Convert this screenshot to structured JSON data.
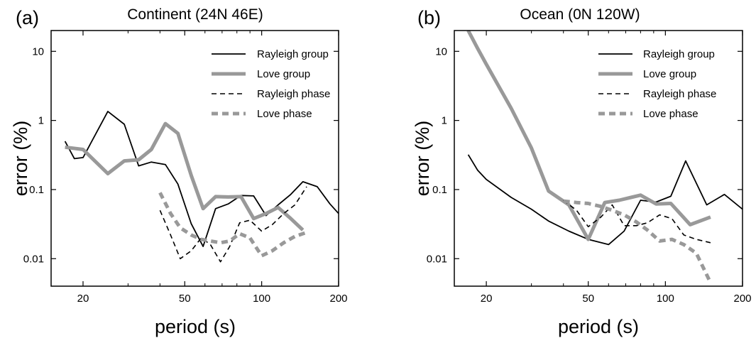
{
  "chart_data": [
    {
      "type": "line",
      "panel_letter": "(a)",
      "title": "Continent (24N 46E)",
      "xlabel": "period (s)",
      "ylabel": "error (%)",
      "xscale": "log",
      "yscale": "log",
      "xlim": [
        15,
        200
      ],
      "ylim": [
        0.004,
        20
      ],
      "x_ticks": [
        20,
        50,
        100,
        200
      ],
      "x_tick_labels": [
        "20",
        "50",
        "100",
        "200"
      ],
      "y_ticks": [
        0.01,
        0.1,
        1,
        10
      ],
      "y_tick_labels": [
        "0.01",
        "0.1",
        "1",
        "10"
      ],
      "grid": false,
      "legend_position": "top-right",
      "series": [
        {
          "name": "Rayleigh group",
          "color": "#000000",
          "style": "solid-thin",
          "x": [
            17,
            18.5,
            20,
            25,
            29,
            33,
            37,
            42,
            47,
            53,
            59,
            66,
            74,
            83,
            93,
            104,
            116,
            130,
            145,
            165,
            185,
            200
          ],
          "y": [
            0.5,
            0.28,
            0.29,
            1.35,
            0.88,
            0.22,
            0.25,
            0.23,
            0.12,
            0.032,
            0.015,
            0.053,
            0.062,
            0.082,
            0.081,
            0.042,
            0.06,
            0.085,
            0.13,
            0.11,
            0.062,
            0.045
          ]
        },
        {
          "name": "Love group",
          "color": "#999999",
          "style": "solid-thick",
          "x": [
            17,
            20,
            25,
            29,
            33,
            37,
            42,
            47,
            53,
            59,
            66,
            74,
            83,
            93,
            104,
            116,
            130,
            145
          ],
          "y": [
            0.41,
            0.38,
            0.17,
            0.26,
            0.27,
            0.38,
            0.9,
            0.65,
            0.16,
            0.053,
            0.079,
            0.078,
            0.079,
            0.038,
            0.045,
            0.055,
            0.038,
            0.026
          ]
        },
        {
          "name": "Rayleigh phase",
          "color": "#000000",
          "style": "dashed-thin",
          "x": [
            40,
            44,
            48,
            53,
            58,
            63,
            69,
            75,
            82,
            90,
            100,
            110,
            122,
            135,
            150
          ],
          "y": [
            0.05,
            0.022,
            0.01,
            0.013,
            0.02,
            0.016,
            0.009,
            0.015,
            0.033,
            0.036,
            0.025,
            0.031,
            0.045,
            0.06,
            0.11
          ]
        },
        {
          "name": "Love phase",
          "color": "#999999",
          "style": "dashed-thick",
          "x": [
            40,
            44,
            48,
            53,
            58,
            63,
            69,
            75,
            82,
            90,
            100,
            110,
            122,
            135,
            150
          ],
          "y": [
            0.09,
            0.045,
            0.028,
            0.022,
            0.019,
            0.018,
            0.017,
            0.018,
            0.023,
            0.02,
            0.011,
            0.013,
            0.017,
            0.021,
            0.024
          ]
        }
      ]
    },
    {
      "type": "line",
      "panel_letter": "(b)",
      "title": "Ocean (0N 120W)",
      "xlabel": "period (s)",
      "ylabel": "error (%)",
      "xscale": "log",
      "yscale": "log",
      "xlim": [
        15,
        200
      ],
      "ylim": [
        0.004,
        20
      ],
      "x_ticks": [
        20,
        50,
        100,
        200
      ],
      "x_tick_labels": [
        "20",
        "50",
        "100",
        "200"
      ],
      "y_ticks": [
        0.01,
        0.1,
        1,
        10
      ],
      "y_tick_labels": [
        "0.01",
        "0.1",
        "1",
        "10"
      ],
      "grid": false,
      "legend_position": "top-right",
      "series": [
        {
          "name": "Rayleigh group",
          "color": "#000000",
          "style": "solid-thin",
          "x": [
            17,
            18.5,
            20,
            25,
            30,
            35,
            42,
            50,
            60,
            69,
            80,
            92,
            105,
            120,
            145,
            170,
            200
          ],
          "y": [
            0.32,
            0.19,
            0.14,
            0.077,
            0.052,
            0.035,
            0.025,
            0.019,
            0.016,
            0.025,
            0.07,
            0.066,
            0.08,
            0.26,
            0.06,
            0.085,
            0.052
          ]
        },
        {
          "name": "Love group",
          "color": "#999999",
          "style": "solid-thick",
          "x": [
            17,
            18.5,
            20,
            25,
            30,
            35,
            42,
            50,
            58,
            66,
            80,
            92,
            105,
            125,
            150
          ],
          "y": [
            20,
            11,
            6.5,
            1.5,
            0.4,
            0.095,
            0.06,
            0.019,
            0.065,
            0.07,
            0.083,
            0.062,
            0.063,
            0.031,
            0.04
          ]
        },
        {
          "name": "Rayleigh phase",
          "color": "#000000",
          "style": "dashed-thin",
          "x": [
            40,
            45,
            50,
            56,
            62,
            69,
            77,
            85,
            95,
            106,
            118,
            132,
            150
          ],
          "y": [
            0.07,
            0.05,
            0.029,
            0.04,
            0.06,
            0.03,
            0.03,
            0.033,
            0.043,
            0.038,
            0.022,
            0.019,
            0.017
          ]
        },
        {
          "name": "Love phase",
          "color": "#999999",
          "style": "dashed-thick",
          "x": [
            40,
            45,
            50,
            56,
            62,
            69,
            77,
            85,
            95,
            106,
            118,
            132,
            150
          ],
          "y": [
            0.068,
            0.065,
            0.063,
            0.057,
            0.05,
            0.043,
            0.034,
            0.026,
            0.018,
            0.019,
            0.016,
            0.012,
            0.0045
          ]
        }
      ]
    }
  ]
}
